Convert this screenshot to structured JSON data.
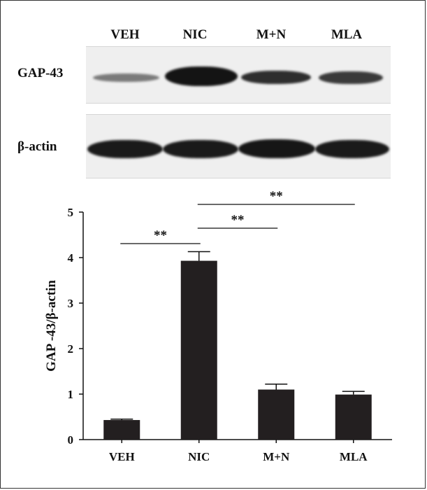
{
  "blot": {
    "lanes": [
      "VEH",
      "NIC",
      "M+N",
      "MLA"
    ],
    "rows": [
      {
        "label": "GAP-43"
      },
      {
        "label": "β-actin"
      }
    ]
  },
  "chart_data": {
    "type": "bar",
    "categories": [
      "VEH",
      "NIC",
      "M+N",
      "MLA"
    ],
    "values": [
      0.43,
      3.93,
      1.1,
      0.99
    ],
    "errors": [
      0.02,
      0.2,
      0.12,
      0.07
    ],
    "ylabel": "GAP -43/β-actin",
    "xlabel": "",
    "ylim": [
      0,
      5
    ],
    "yticks": [
      0,
      1,
      2,
      3,
      4,
      5
    ],
    "bar_color": "#231f20",
    "grid": false,
    "significance": [
      {
        "from": "VEH",
        "to": "NIC",
        "label": "**"
      },
      {
        "from": "NIC",
        "to": "M+N",
        "label": "**"
      },
      {
        "from": "NIC",
        "to": "MLA",
        "label": "**"
      }
    ]
  }
}
